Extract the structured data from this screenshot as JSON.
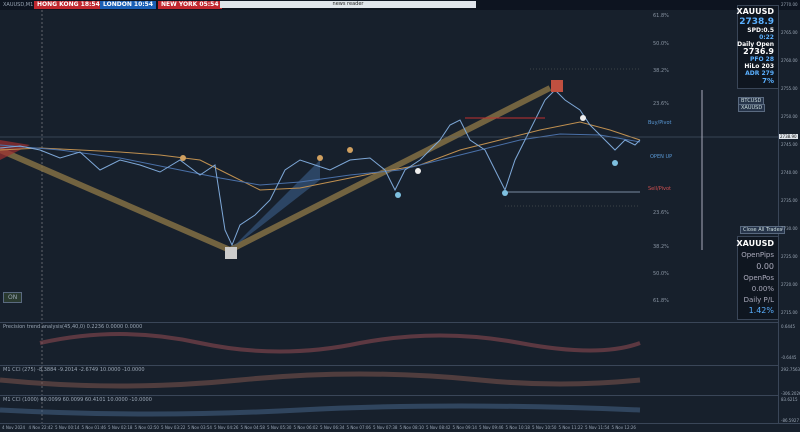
{
  "symbol": "XAUUSD,M1",
  "clocks": [
    "HONG KONG 18:54",
    "LONDON 10:54",
    "NEW YORK 05:54"
  ],
  "news_reader": "news reader",
  "fib_levels": [
    "61.8%",
    "50.0%",
    "38.2%",
    "23.6%",
    "23.6%",
    "38.2%",
    "50.0%",
    "61.8%"
  ],
  "pivots": [
    "Buy/Pivot",
    "OPEN UP",
    "Sell/Pivot"
  ],
  "info_panel": {
    "symbol": "XAUUSD",
    "price": "2738.9",
    "spread": "SPD:0.5",
    "timer": "0:22",
    "daily_open_label": "Daily Open",
    "daily_open": "2736.9",
    "pfo": "PFO  28",
    "hilo": "HiLo 203",
    "adr": "ADR  279",
    "adr_pct": "7%"
  },
  "symbol_buttons": [
    "BTCUSD",
    "XAUUSD"
  ],
  "close_all": "Close All Trades",
  "pl_panel": {
    "symbol": "XAUUSD",
    "open_pips_label": "OpenPips",
    "open_pips": "0.00",
    "open_pos_label": "OpenPos",
    "open_pos": "0.00%",
    "daily_pl_label": "Daily P/L",
    "daily_pl": "1.42%"
  },
  "on_button": "ON",
  "indicators": [
    "Precision trend analysis(45,40,0) 0.2236 0.0000 0.0000",
    "M1 CCI (275) -8.3884 -9.2014 -2.6749 10.0000 -10.0000",
    "M1 CCI (1000) 60.0099 60.0099 60.4101 10.0000 -10.0000"
  ],
  "price_axis": [
    "2770.00",
    "2765.00",
    "2760.00",
    "2755.00",
    "2750.00",
    "2745.00",
    "2740.00",
    "2735.00",
    "2730.00",
    "2725.00",
    "2720.00",
    "2715.00"
  ],
  "current_price": "2738.90",
  "indicator_axis": [
    "0.6445",
    "-0.6445",
    "292.7563",
    "-306.2026",
    "83.6215",
    "-86.5927"
  ],
  "time_axis": [
    "4 Nov 2024",
    "4 Nov 22:42",
    "5 Nov 00:14",
    "5 Nov 01:46",
    "5 Nov 02:18",
    "5 Nov 02:50",
    "5 Nov 03:22",
    "5 Nov 03:54",
    "5 Nov 04:26",
    "5 Nov 04:58",
    "5 Nov 05:30",
    "5 Nov 06:02",
    "5 Nov 06:34",
    "5 Nov 07:06",
    "5 Nov 07:38",
    "5 Nov 08:10",
    "5 Nov 08:42",
    "5 Nov 09:14",
    "5 Nov 09:46",
    "5 Nov 10:18",
    "5 Nov 10:50",
    "5 Nov 11:22",
    "5 Nov 11:54",
    "5 Nov 12:26"
  ]
}
